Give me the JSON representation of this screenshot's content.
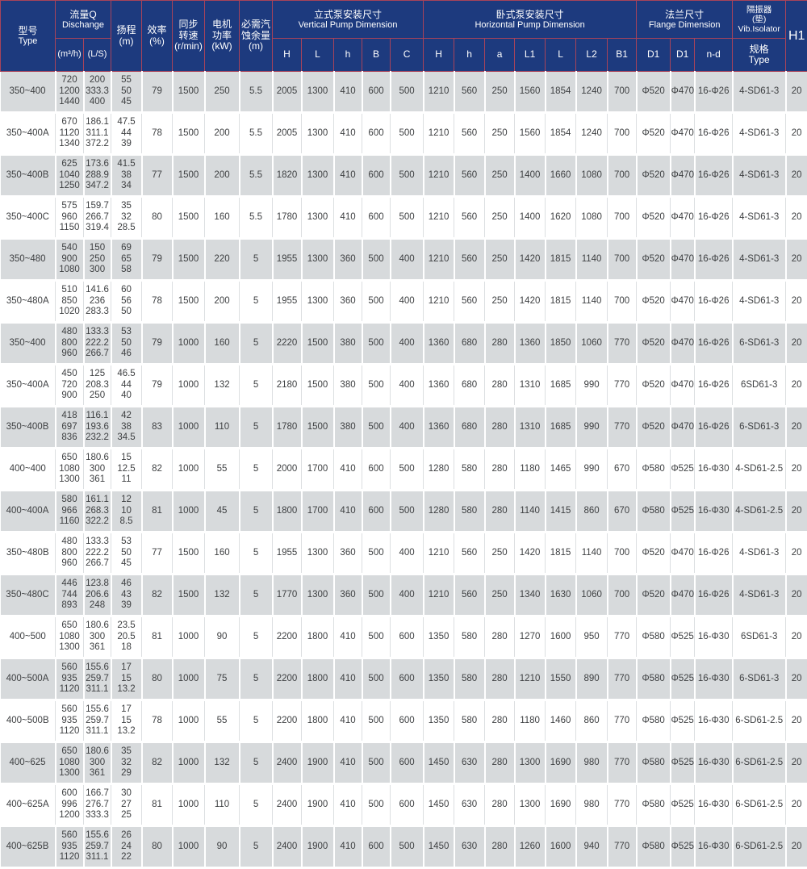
{
  "header": {
    "type": {
      "cn": "型号",
      "en": "Type"
    },
    "flow": {
      "cn": "流量Q",
      "en": "Dischange"
    },
    "flow_units": [
      "(m³/h)",
      "(L/S)"
    ],
    "head_m": [
      "扬程",
      "(m)"
    ],
    "efficiency": [
      "效率",
      "(%)"
    ],
    "speed": [
      "同步",
      "转速",
      "(r/min)"
    ],
    "power": [
      "电机",
      "功率",
      "(kW)"
    ],
    "npsh": [
      "必需汽",
      "蚀余量",
      "(m)"
    ],
    "vertical": {
      "cn": "立式泵安装尺寸",
      "en": "Vertical Pump Dimension",
      "cols": [
        "H",
        "L",
        "h",
        "B",
        "C"
      ]
    },
    "horizontal": {
      "cn": "卧式泵安装尺寸",
      "en": "Horizontal Pump Dimension",
      "cols": [
        "H",
        "h",
        "a",
        "L1",
        "L",
        "L2",
        "B1"
      ]
    },
    "flange": {
      "cn": "法兰尺寸",
      "en": "Flange Dimension",
      "cols": [
        "D1",
        "D1",
        "n-d"
      ]
    },
    "isolator": {
      "cn_lines": [
        "隔振器",
        "(垫)",
        "Vib.Isolator"
      ],
      "sub": [
        "规格",
        "Type"
      ]
    },
    "h1": "H1"
  },
  "colors": {
    "header_bg": "#1d3a7e",
    "header_line": "#a8435a",
    "row_odd": "#d7dadc",
    "row_even": "#ffffff",
    "text": "#3d3f41"
  },
  "rows": [
    {
      "type": "350~400",
      "flow_m3h": [
        "720",
        "1200",
        "1440"
      ],
      "flow_ls": [
        "200",
        "333.3",
        "400"
      ],
      "head": [
        "55",
        "50",
        "45"
      ],
      "efficiency": "79",
      "speed": "1500",
      "power": "250",
      "npsh": "5.5",
      "vertical": [
        "2005",
        "1300",
        "410",
        "600",
        "500"
      ],
      "horizontal": [
        "1210",
        "560",
        "250",
        "1560",
        "1854",
        "1240",
        "700"
      ],
      "flange": [
        "Φ520",
        "Φ470",
        "16-Φ26"
      ],
      "isolator": "4-SD61-3",
      "h1": "20"
    },
    {
      "type": "350~400A",
      "flow_m3h": [
        "670",
        "1120",
        "1340"
      ],
      "flow_ls": [
        "186.1",
        "311.1",
        "372.2"
      ],
      "head": [
        "47.5",
        "44",
        "39"
      ],
      "efficiency": "78",
      "speed": "1500",
      "power": "200",
      "npsh": "5.5",
      "vertical": [
        "2005",
        "1300",
        "410",
        "600",
        "500"
      ],
      "horizontal": [
        "1210",
        "560",
        "250",
        "1560",
        "1854",
        "1240",
        "700"
      ],
      "flange": [
        "Φ520",
        "Φ470",
        "16-Φ26"
      ],
      "isolator": "4-SD61-3",
      "h1": "20"
    },
    {
      "type": "350~400B",
      "flow_m3h": [
        "625",
        "1040",
        "1250"
      ],
      "flow_ls": [
        "173.6",
        "288.9",
        "347.2"
      ],
      "head": [
        "41.5",
        "38",
        "34"
      ],
      "efficiency": "77",
      "speed": "1500",
      "power": "200",
      "npsh": "5.5",
      "vertical": [
        "1820",
        "1300",
        "410",
        "600",
        "500"
      ],
      "horizontal": [
        "1210",
        "560",
        "250",
        "1400",
        "1660",
        "1080",
        "700"
      ],
      "flange": [
        "Φ520",
        "Φ470",
        "16-Φ26"
      ],
      "isolator": "4-SD61-3",
      "h1": "20"
    },
    {
      "type": "350~400C",
      "flow_m3h": [
        "575",
        "960",
        "1150"
      ],
      "flow_ls": [
        "159.7",
        "266.7",
        "319.4"
      ],
      "head": [
        "35",
        "32",
        "28.5"
      ],
      "efficiency": "80",
      "speed": "1500",
      "power": "160",
      "npsh": "5.5",
      "vertical": [
        "1780",
        "1300",
        "410",
        "600",
        "500"
      ],
      "horizontal": [
        "1210",
        "560",
        "250",
        "1400",
        "1620",
        "1080",
        "700"
      ],
      "flange": [
        "Φ520",
        "Φ470",
        "16-Φ26"
      ],
      "isolator": "4-SD61-3",
      "h1": "20"
    },
    {
      "type": "350~480",
      "flow_m3h": [
        "540",
        "900",
        "1080"
      ],
      "flow_ls": [
        "150",
        "250",
        "300"
      ],
      "head": [
        "69",
        "65",
        "58"
      ],
      "efficiency": "79",
      "speed": "1500",
      "power": "220",
      "npsh": "5",
      "vertical": [
        "1955",
        "1300",
        "360",
        "500",
        "400"
      ],
      "horizontal": [
        "1210",
        "560",
        "250",
        "1420",
        "1815",
        "1140",
        "700"
      ],
      "flange": [
        "Φ520",
        "Φ470",
        "16-Φ26"
      ],
      "isolator": "4-SD61-3",
      "h1": "20"
    },
    {
      "type": "350~480A",
      "flow_m3h": [
        "510",
        "850",
        "1020"
      ],
      "flow_ls": [
        "141.6",
        "236",
        "283.3"
      ],
      "head": [
        "60",
        "56",
        "50"
      ],
      "efficiency": "78",
      "speed": "1500",
      "power": "200",
      "npsh": "5",
      "vertical": [
        "1955",
        "1300",
        "360",
        "500",
        "400"
      ],
      "horizontal": [
        "1210",
        "560",
        "250",
        "1420",
        "1815",
        "1140",
        "700"
      ],
      "flange": [
        "Φ520",
        "Φ470",
        "16-Φ26"
      ],
      "isolator": "4-SD61-3",
      "h1": "20"
    },
    {
      "type": "350~400",
      "flow_m3h": [
        "480",
        "800",
        "960"
      ],
      "flow_ls": [
        "133.3",
        "222.2",
        "266.7"
      ],
      "head": [
        "53",
        "50",
        "46"
      ],
      "efficiency": "79",
      "speed": "1000",
      "power": "160",
      "npsh": "5",
      "vertical": [
        "2220",
        "1500",
        "380",
        "500",
        "400"
      ],
      "horizontal": [
        "1360",
        "680",
        "280",
        "1360",
        "1850",
        "1060",
        "770"
      ],
      "flange": [
        "Φ520",
        "Φ470",
        "16-Φ26"
      ],
      "isolator": "6-SD61-3",
      "h1": "20"
    },
    {
      "type": "350~400A",
      "flow_m3h": [
        "450",
        "720",
        "900"
      ],
      "flow_ls": [
        "125",
        "208.3",
        "250"
      ],
      "head": [
        "46.5",
        "44",
        "40"
      ],
      "efficiency": "79",
      "speed": "1000",
      "power": "132",
      "npsh": "5",
      "vertical": [
        "2180",
        "1500",
        "380",
        "500",
        "400"
      ],
      "horizontal": [
        "1360",
        "680",
        "280",
        "1310",
        "1685",
        "990",
        "770"
      ],
      "flange": [
        "Φ520",
        "Φ470",
        "16-Φ26"
      ],
      "isolator": "6SD61-3",
      "h1": "20"
    },
    {
      "type": "350~400B",
      "flow_m3h": [
        "418",
        "697",
        "836"
      ],
      "flow_ls": [
        "116.1",
        "193.6",
        "232.2"
      ],
      "head": [
        "42",
        "38",
        "34.5"
      ],
      "efficiency": "83",
      "speed": "1000",
      "power": "110",
      "npsh": "5",
      "vertical": [
        "1780",
        "1500",
        "380",
        "500",
        "400"
      ],
      "horizontal": [
        "1360",
        "680",
        "280",
        "1310",
        "1685",
        "990",
        "770"
      ],
      "flange": [
        "Φ520",
        "Φ470",
        "16-Φ26"
      ],
      "isolator": "6-SD61-3",
      "h1": "20"
    },
    {
      "type": "400~400",
      "flow_m3h": [
        "650",
        "1080",
        "1300"
      ],
      "flow_ls": [
        "180.6",
        "300",
        "361"
      ],
      "head": [
        "15",
        "12.5",
        "11"
      ],
      "efficiency": "82",
      "speed": "1000",
      "power": "55",
      "npsh": "5",
      "vertical": [
        "2000",
        "1700",
        "410",
        "600",
        "500"
      ],
      "horizontal": [
        "1280",
        "580",
        "280",
        "1180",
        "1465",
        "990",
        "670"
      ],
      "flange": [
        "Φ580",
        "Φ525",
        "16-Φ30"
      ],
      "isolator": "4-SD61-2.5",
      "h1": "20"
    },
    {
      "type": "400~400A",
      "flow_m3h": [
        "580",
        "966",
        "1160"
      ],
      "flow_ls": [
        "161.1",
        "268.3",
        "322.2"
      ],
      "head": [
        "12",
        "10",
        "8.5"
      ],
      "efficiency": "81",
      "speed": "1000",
      "power": "45",
      "npsh": "5",
      "vertical": [
        "1800",
        "1700",
        "410",
        "600",
        "500"
      ],
      "horizontal": [
        "1280",
        "580",
        "280",
        "1140",
        "1415",
        "860",
        "670"
      ],
      "flange": [
        "Φ580",
        "Φ525",
        "16-Φ30"
      ],
      "isolator": "4-SD61-2.5",
      "h1": "20"
    },
    {
      "type": "350~480B",
      "flow_m3h": [
        "480",
        "800",
        "960"
      ],
      "flow_ls": [
        "133.3",
        "222.2",
        "266.7"
      ],
      "head": [
        "53",
        "50",
        "45"
      ],
      "efficiency": "77",
      "speed": "1500",
      "power": "160",
      "npsh": "5",
      "vertical": [
        "1955",
        "1300",
        "360",
        "500",
        "400"
      ],
      "horizontal": [
        "1210",
        "560",
        "250",
        "1420",
        "1815",
        "1140",
        "700"
      ],
      "flange": [
        "Φ520",
        "Φ470",
        "16-Φ26"
      ],
      "isolator": "4-SD61-3",
      "h1": "20"
    },
    {
      "type": "350~480C",
      "flow_m3h": [
        "446",
        "744",
        "893"
      ],
      "flow_ls": [
        "123.8",
        "206.6",
        "248"
      ],
      "head": [
        "46",
        "43",
        "39"
      ],
      "efficiency": "82",
      "speed": "1500",
      "power": "132",
      "npsh": "5",
      "vertical": [
        "1770",
        "1300",
        "360",
        "500",
        "400"
      ],
      "horizontal": [
        "1210",
        "560",
        "250",
        "1340",
        "1630",
        "1060",
        "700"
      ],
      "flange": [
        "Φ520",
        "Φ470",
        "16-Φ26"
      ],
      "isolator": "4-SD61-3",
      "h1": "20"
    },
    {
      "type": "400~500",
      "flow_m3h": [
        "650",
        "1080",
        "1300"
      ],
      "flow_ls": [
        "180.6",
        "300",
        "361"
      ],
      "head": [
        "23.5",
        "20.5",
        "18"
      ],
      "efficiency": "81",
      "speed": "1000",
      "power": "90",
      "npsh": "5",
      "vertical": [
        "2200",
        "1800",
        "410",
        "500",
        "600"
      ],
      "horizontal": [
        "1350",
        "580",
        "280",
        "1270",
        "1600",
        "950",
        "770"
      ],
      "flange": [
        "Φ580",
        "Φ525",
        "16-Φ30"
      ],
      "isolator": "6SD61-3",
      "h1": "20"
    },
    {
      "type": "400~500A",
      "flow_m3h": [
        "560",
        "935",
        "1120"
      ],
      "flow_ls": [
        "155.6",
        "259.7",
        "311.1"
      ],
      "head": [
        "17",
        "15",
        "13.2"
      ],
      "efficiency": "80",
      "speed": "1000",
      "power": "75",
      "npsh": "5",
      "vertical": [
        "2200",
        "1800",
        "410",
        "500",
        "600"
      ],
      "horizontal": [
        "1350",
        "580",
        "280",
        "1210",
        "1550",
        "890",
        "770"
      ],
      "flange": [
        "Φ580",
        "Φ525",
        "16-Φ30"
      ],
      "isolator": "6-SD61-3",
      "h1": "20"
    },
    {
      "type": "400~500B",
      "flow_m3h": [
        "560",
        "935",
        "1120"
      ],
      "flow_ls": [
        "155.6",
        "259.7",
        "311.1"
      ],
      "head": [
        "17",
        "15",
        "13.2"
      ],
      "efficiency": "78",
      "speed": "1000",
      "power": "55",
      "npsh": "5",
      "vertical": [
        "2200",
        "1800",
        "410",
        "500",
        "600"
      ],
      "horizontal": [
        "1350",
        "580",
        "280",
        "1180",
        "1460",
        "860",
        "770"
      ],
      "flange": [
        "Φ580",
        "Φ525",
        "16-Φ30"
      ],
      "isolator": "6-SD61-2.5",
      "h1": "20"
    },
    {
      "type": "400~625",
      "flow_m3h": [
        "650",
        "1080",
        "1300"
      ],
      "flow_ls": [
        "180.6",
        "300",
        "361"
      ],
      "head": [
        "35",
        "32",
        "29"
      ],
      "efficiency": "82",
      "speed": "1000",
      "power": "132",
      "npsh": "5",
      "vertical": [
        "2400",
        "1900",
        "410",
        "500",
        "600"
      ],
      "horizontal": [
        "1450",
        "630",
        "280",
        "1300",
        "1690",
        "980",
        "770"
      ],
      "flange": [
        "Φ580",
        "Φ525",
        "16-Φ30"
      ],
      "isolator": "6-SD61-2.5",
      "h1": "20"
    },
    {
      "type": "400~625A",
      "flow_m3h": [
        "600",
        "996",
        "1200"
      ],
      "flow_ls": [
        "166.7",
        "276.7",
        "333.3"
      ],
      "head": [
        "30",
        "27",
        "25"
      ],
      "efficiency": "81",
      "speed": "1000",
      "power": "110",
      "npsh": "5",
      "vertical": [
        "2400",
        "1900",
        "410",
        "500",
        "600"
      ],
      "horizontal": [
        "1450",
        "630",
        "280",
        "1300",
        "1690",
        "980",
        "770"
      ],
      "flange": [
        "Φ580",
        "Φ525",
        "16-Φ30"
      ],
      "isolator": "6-SD61-2.5",
      "h1": "20"
    },
    {
      "type": "400~625B",
      "flow_m3h": [
        "560",
        "935",
        "1120"
      ],
      "flow_ls": [
        "155.6",
        "259.7",
        "311.1"
      ],
      "head": [
        "26",
        "24",
        "22"
      ],
      "efficiency": "80",
      "speed": "1000",
      "power": "90",
      "npsh": "5",
      "vertical": [
        "2400",
        "1900",
        "410",
        "600",
        "500"
      ],
      "horizontal": [
        "1450",
        "630",
        "280",
        "1260",
        "1600",
        "940",
        "770"
      ],
      "flange": [
        "Φ580",
        "Φ525",
        "16-Φ30"
      ],
      "isolator": "6-SD61-2.5",
      "h1": "20"
    }
  ]
}
